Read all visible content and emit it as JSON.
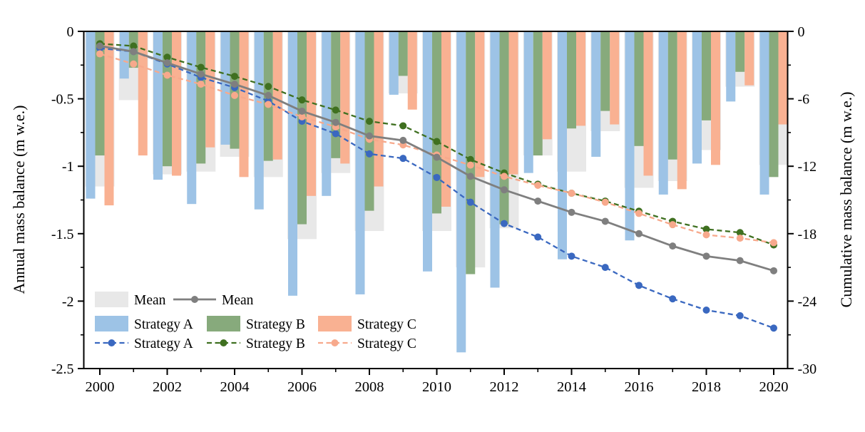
{
  "chart_data": {
    "type": "bar+line",
    "years": [
      2000,
      2001,
      2002,
      2003,
      2004,
      2005,
      2006,
      2007,
      2008,
      2009,
      2010,
      2011,
      2012,
      2013,
      2014,
      2015,
      2016,
      2017,
      2018,
      2019,
      2020
    ],
    "x_axis": {
      "major_tick_labels": [
        "2000",
        "2002",
        "2004",
        "2006",
        "2008",
        "2010",
        "2012",
        "2014",
        "2016",
        "2018",
        "2020"
      ],
      "minor_ticks_at_odd_years": true
    },
    "left_axis": {
      "label": "Annual mass balance (m w.e.)",
      "ticks": [
        0,
        -0.5,
        -1,
        -1.5,
        -2,
        -2.5
      ],
      "tick_labels": [
        "0",
        "-0.5",
        "-1",
        "-1.5",
        "-2",
        "-2.5"
      ],
      "range": [
        0,
        -2.5
      ],
      "minor_step": 0.25
    },
    "right_axis": {
      "label": "Cumulative mass balance (m w.e.)",
      "ticks": [
        0,
        -6,
        -12,
        -18,
        -24,
        -30
      ],
      "tick_labels": [
        "0",
        "-6",
        "-12",
        "-18",
        "-24",
        "-30"
      ],
      "range": [
        0,
        -30
      ],
      "minor_step": 3
    },
    "bar_series": [
      {
        "name": "Mean",
        "color": "#e8e8e8",
        "values": [
          -1.15,
          -0.51,
          -1.06,
          -1.04,
          -0.93,
          -1.08,
          -1.54,
          -1.05,
          -1.48,
          -0.46,
          -1.48,
          -1.75,
          -1.46,
          -0.92,
          -1.04,
          -0.74,
          -1.16,
          -1.11,
          -0.88,
          -0.41,
          -0.99
        ]
      },
      {
        "name": "Strategy A",
        "color": "#9dc3e6",
        "values": [
          -1.24,
          -0.35,
          -1.1,
          -1.28,
          -0.84,
          -1.32,
          -1.96,
          -1.22,
          -1.95,
          -0.47,
          -1.78,
          -2.38,
          -1.9,
          -1.05,
          -1.69,
          -0.93,
          -1.55,
          -1.21,
          -0.98,
          -0.52,
          -1.21
        ]
      },
      {
        "name": "Strategy B",
        "color": "#87aa7c",
        "values": [
          -0.92,
          -0.27,
          -1.0,
          -0.98,
          -0.87,
          -0.96,
          -1.43,
          -0.94,
          -1.33,
          -0.33,
          -1.35,
          -1.8,
          -1.43,
          -0.92,
          -0.72,
          -0.59,
          -0.85,
          -0.95,
          -0.66,
          -0.3,
          -1.08
        ]
      },
      {
        "name": "Strategy C",
        "color": "#f9b192",
        "values": [
          -1.29,
          -0.92,
          -1.07,
          -0.86,
          -1.08,
          -0.95,
          -1.22,
          -0.98,
          -1.15,
          -0.58,
          -1.3,
          -1.08,
          -1.06,
          -0.8,
          -0.7,
          -0.69,
          -1.07,
          -1.17,
          -0.99,
          -0.4,
          -0.69
        ]
      }
    ],
    "line_series": [
      {
        "name": "Strategy A",
        "color": "#3a68c0",
        "dashed": true,
        "values": [
          -1.5,
          -1.8,
          -2.9,
          -4.1,
          -5.0,
          -6.2,
          -8.0,
          -9.1,
          -10.9,
          -11.3,
          -13.0,
          -15.2,
          -17.1,
          -18.3,
          -20.0,
          -21.0,
          -22.6,
          -23.8,
          -24.8,
          -25.3,
          -26.4
        ]
      },
      {
        "name": "Strategy B",
        "color": "#3f7020",
        "dashed": true,
        "values": [
          -1.1,
          -1.3,
          -2.3,
          -3.2,
          -4.0,
          -4.9,
          -6.1,
          -7.0,
          -8.0,
          -8.4,
          -9.8,
          -11.4,
          -12.6,
          -13.6,
          -14.4,
          -15.1,
          -16.0,
          -16.9,
          -17.6,
          -17.9,
          -19.0
        ]
      },
      {
        "name": "Strategy C",
        "color": "#f7a98c",
        "dashed": true,
        "values": [
          -2.0,
          -2.9,
          -3.9,
          -4.7,
          -5.7,
          -6.5,
          -7.6,
          -8.5,
          -9.6,
          -10.1,
          -11.0,
          -11.9,
          -12.9,
          -13.7,
          -14.4,
          -15.2,
          -16.2,
          -17.2,
          -18.1,
          -18.4,
          -18.8
        ]
      },
      {
        "name": "Mean",
        "color": "#7f7f7f",
        "dashed": false,
        "values": [
          -1.3,
          -1.8,
          -2.8,
          -3.8,
          -4.7,
          -5.7,
          -7.1,
          -8.1,
          -9.3,
          -9.7,
          -11.2,
          -12.9,
          -14.1,
          -15.1,
          -16.1,
          -16.9,
          -18.0,
          -19.1,
          -20.0,
          -20.4,
          -21.3
        ]
      }
    ],
    "legend": {
      "rows": [
        [
          {
            "kind": "bar",
            "series": "Mean",
            "label": "Mean"
          },
          {
            "kind": "line",
            "series": "Mean",
            "label": "Mean"
          }
        ],
        [
          {
            "kind": "bar",
            "series": "Strategy A",
            "label": "Strategy A"
          },
          {
            "kind": "bar",
            "series": "Strategy B",
            "label": "Strategy B"
          },
          {
            "kind": "bar",
            "series": "Strategy C",
            "label": "Strategy C"
          }
        ],
        [
          {
            "kind": "line",
            "series": "Strategy A",
            "label": "Strategy A"
          },
          {
            "kind": "line",
            "series": "Strategy B",
            "label": "Strategy B"
          },
          {
            "kind": "line",
            "series": "Strategy C",
            "label": "Strategy C"
          }
        ]
      ]
    }
  }
}
